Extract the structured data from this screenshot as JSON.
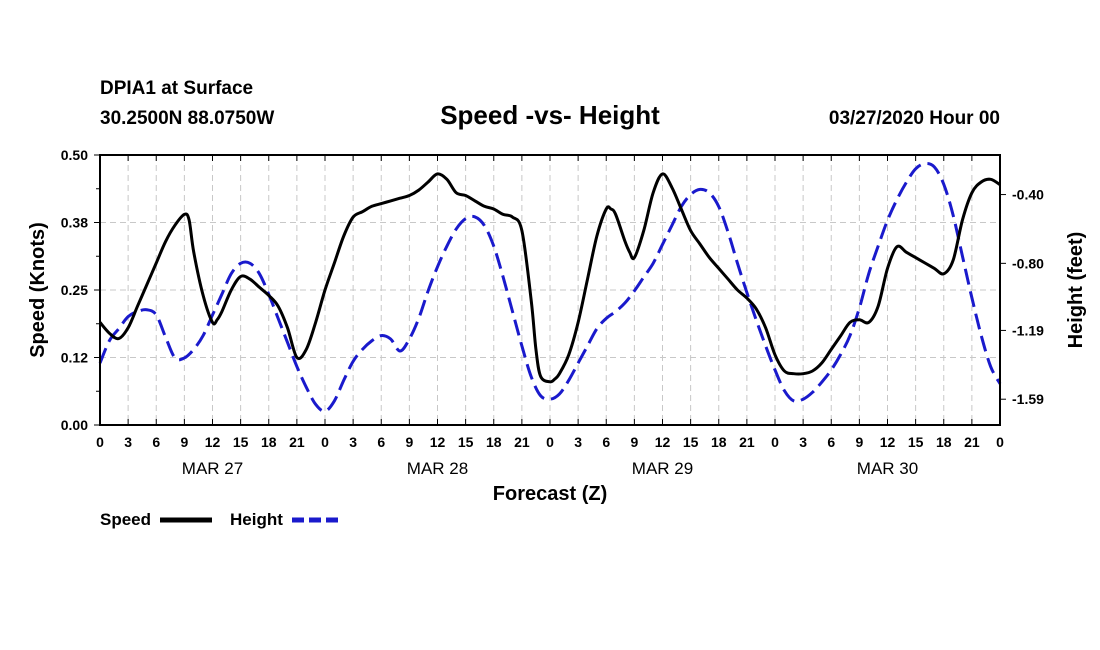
{
  "chart_data": {
    "type": "line",
    "station": "DPIA1 at Surface",
    "location": "30.2500N 88.0750W",
    "title": "Speed -vs- Height",
    "date_label": "03/27/2020 Hour 00",
    "xlabel": "Forecast (Z)",
    "ylabel_left": "Speed (Knots)",
    "ylabel_right": "Height (feet)",
    "x_range_hours": [
      0,
      96
    ],
    "y_left_range": [
      0,
      0.5
    ],
    "y_right_range": [
      -1.74,
      -0.17
    ],
    "y_left_ticks": [
      "0.00",
      "0.12",
      "0.25",
      "0.38",
      "0.50"
    ],
    "y_left_tick_values": [
      0,
      0.125,
      0.25,
      0.375,
      0.5
    ],
    "y_right_ticks": [
      "-0.40",
      "-0.80",
      "-1.19",
      "-1.59"
    ],
    "y_right_tick_values": [
      -0.4,
      -0.8,
      -1.19,
      -1.59
    ],
    "x_ticks": [
      "0",
      "3",
      "6",
      "9",
      "12",
      "15",
      "18",
      "21",
      "0",
      "3",
      "6",
      "9",
      "12",
      "15",
      "18",
      "21",
      "0",
      "3",
      "6",
      "9",
      "12",
      "15",
      "18",
      "21",
      "0",
      "3",
      "6",
      "9",
      "12",
      "15",
      "18",
      "21",
      "0"
    ],
    "day_labels": [
      {
        "label": "MAR 27",
        "hour": 12
      },
      {
        "label": "MAR 28",
        "hour": 36
      },
      {
        "label": "MAR 29",
        "hour": 60
      },
      {
        "label": "MAR 30",
        "hour": 84
      }
    ],
    "series": [
      {
        "name": "Speed",
        "axis": "left",
        "color": "#000000",
        "dash": "solid",
        "x": [
          0,
          1,
          2,
          3,
          4,
          5,
          6,
          7,
          8,
          9,
          9.5,
          10,
          11,
          12,
          12.5,
          13,
          14,
          15,
          16,
          17,
          18,
          19,
          20,
          21,
          22,
          23,
          24,
          25,
          26,
          27,
          28,
          29,
          30,
          31,
          32,
          33,
          34,
          35,
          36,
          37,
          38,
          39,
          40,
          41,
          42,
          43,
          44,
          45,
          46,
          46.5,
          47,
          48,
          48.5,
          49,
          50,
          51,
          52,
          53,
          54,
          54.5,
          55,
          56,
          56.5,
          57,
          58,
          59,
          60,
          61,
          62,
          63,
          64,
          65,
          66,
          67,
          68,
          69,
          70,
          71,
          72,
          73,
          74,
          75,
          76,
          77,
          78,
          79,
          80,
          81,
          82,
          83,
          84,
          85,
          86,
          87,
          88,
          89,
          90,
          91,
          92,
          93,
          94,
          95,
          96
        ],
        "values": [
          0.19,
          0.17,
          0.16,
          0.18,
          0.22,
          0.26,
          0.3,
          0.34,
          0.37,
          0.39,
          0.38,
          0.32,
          0.24,
          0.19,
          0.195,
          0.21,
          0.25,
          0.275,
          0.27,
          0.255,
          0.24,
          0.22,
          0.18,
          0.125,
          0.14,
          0.19,
          0.25,
          0.3,
          0.35,
          0.385,
          0.395,
          0.405,
          0.41,
          0.415,
          0.42,
          0.425,
          0.435,
          0.45,
          0.465,
          0.455,
          0.43,
          0.425,
          0.415,
          0.405,
          0.4,
          0.39,
          0.385,
          0.36,
          0.23,
          0.14,
          0.09,
          0.08,
          0.085,
          0.095,
          0.13,
          0.19,
          0.27,
          0.35,
          0.4,
          0.4,
          0.39,
          0.34,
          0.32,
          0.31,
          0.36,
          0.43,
          0.465,
          0.44,
          0.4,
          0.36,
          0.335,
          0.31,
          0.29,
          0.27,
          0.25,
          0.235,
          0.215,
          0.18,
          0.13,
          0.1,
          0.095,
          0.095,
          0.1,
          0.115,
          0.14,
          0.165,
          0.19,
          0.195,
          0.19,
          0.22,
          0.29,
          0.33,
          0.32,
          0.31,
          0.3,
          0.29,
          0.28,
          0.305,
          0.38,
          0.43,
          0.45,
          0.455,
          0.445
        ]
      },
      {
        "name": "Height",
        "axis": "right",
        "color": "#1a1acc",
        "dash": "dashed",
        "x": [
          0,
          1,
          2,
          3,
          4,
          5,
          6,
          7,
          8,
          9,
          10,
          11,
          12,
          13,
          14,
          15,
          16,
          17,
          18,
          19,
          20,
          21,
          22,
          23,
          24,
          25,
          26,
          27,
          28,
          29,
          30,
          31,
          32,
          33,
          34,
          35,
          36,
          37,
          38,
          39,
          40,
          41,
          42,
          43,
          44,
          45,
          46,
          47,
          48,
          49,
          50,
          51,
          52,
          53,
          54,
          55,
          56,
          57,
          58,
          59,
          60,
          61,
          62,
          63,
          64,
          65,
          66,
          67,
          68,
          69,
          70,
          71,
          72,
          73,
          74,
          75,
          76,
          77,
          78,
          79,
          80,
          81,
          82,
          83,
          84,
          85,
          86,
          87,
          88,
          89,
          90,
          91,
          92,
          93,
          94,
          95,
          96
        ],
        "values": [
          -1.38,
          -1.25,
          -1.18,
          -1.11,
          -1.08,
          -1.07,
          -1.1,
          -1.23,
          -1.35,
          -1.35,
          -1.3,
          -1.22,
          -1.1,
          -0.98,
          -0.86,
          -0.8,
          -0.8,
          -0.86,
          -0.98,
          -1.12,
          -1.26,
          -1.4,
          -1.52,
          -1.62,
          -1.66,
          -1.6,
          -1.48,
          -1.37,
          -1.3,
          -1.25,
          -1.22,
          -1.24,
          -1.31,
          -1.24,
          -1.12,
          -0.96,
          -0.82,
          -0.7,
          -0.6,
          -0.54,
          -0.53,
          -0.58,
          -0.7,
          -0.88,
          -1.08,
          -1.28,
          -1.46,
          -1.57,
          -1.59,
          -1.56,
          -1.48,
          -1.38,
          -1.28,
          -1.18,
          -1.12,
          -1.08,
          -1.03,
          -0.96,
          -0.88,
          -0.8,
          -0.69,
          -0.58,
          -0.47,
          -0.4,
          -0.37,
          -0.39,
          -0.47,
          -0.62,
          -0.8,
          -0.97,
          -1.13,
          -1.28,
          -1.42,
          -1.54,
          -1.6,
          -1.59,
          -1.55,
          -1.49,
          -1.42,
          -1.33,
          -1.22,
          -1.06,
          -0.86,
          -0.7,
          -0.55,
          -0.43,
          -0.33,
          -0.25,
          -0.22,
          -0.24,
          -0.34,
          -0.52,
          -0.76,
          -1.0,
          -1.22,
          -1.4,
          -1.5
        ]
      }
    ]
  },
  "legend": {
    "speed_label": "Speed",
    "height_label": "Height"
  }
}
